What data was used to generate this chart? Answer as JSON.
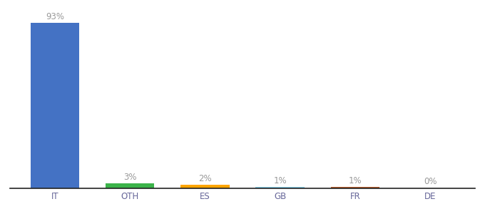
{
  "categories": [
    "IT",
    "OTH",
    "ES",
    "GB",
    "FR",
    "DE"
  ],
  "values": [
    93,
    3,
    2,
    1,
    1,
    0
  ],
  "labels": [
    "93%",
    "3%",
    "2%",
    "1%",
    "1%",
    "0%"
  ],
  "bar_colors": [
    "#4472C4",
    "#3BB34A",
    "#FFA500",
    "#87CEEB",
    "#B85C2A",
    "#B85C2A"
  ],
  "background_color": "#ffffff",
  "ylim": [
    0,
    100
  ],
  "label_fontsize": 8.5,
  "tick_fontsize": 8.5,
  "bar_width": 0.65,
  "label_color": "#999999",
  "tick_color": "#666699"
}
